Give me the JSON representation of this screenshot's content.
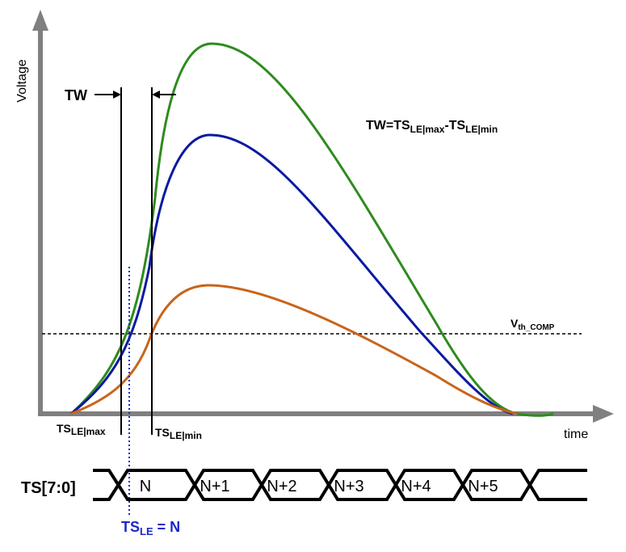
{
  "labels": {
    "y_axis": "Voltage",
    "x_axis": "time",
    "tw": "TW",
    "formula_main_1": "TW=TS",
    "formula_sub_1": "LE|max",
    "formula_dash": "-TS",
    "formula_sub_2": "LE|min",
    "vth_main": "V",
    "vth_sub": "th_COMP",
    "ts_max_main": "TS",
    "ts_max_sub": "LE|max",
    "ts_min_main": "TS",
    "ts_min_sub": "LE|min",
    "bus_name": "TS[7:0]",
    "tsle_main": "TS",
    "tsle_sub": "LE",
    "tsle_value": " = N"
  },
  "bus_values": [
    "N",
    "N+1",
    "N+2",
    "N+3",
    "N+4",
    "N+5"
  ],
  "colors": {
    "curve_large": "#2e8b1e",
    "curve_medium": "#0a1aa0",
    "curve_small": "#c8641a",
    "axis": "#808080",
    "tsle_marker": "#1a28c8"
  }
}
